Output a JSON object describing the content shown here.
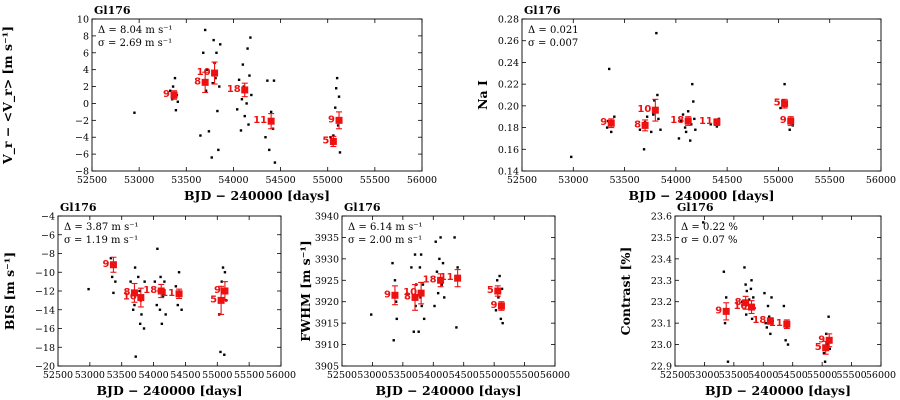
{
  "figure": {
    "object": "Gl176"
  },
  "colors": {
    "binned": "#ee1111",
    "raw": "#000000",
    "axes": "#000000"
  },
  "chart_data": [
    {
      "type": "scatter",
      "title": "Gl176",
      "xlabel": "BJD − 240000 [days]",
      "ylabel": "V_r − <V_r> [m s⁻¹]",
      "xlim": [
        52500,
        56000
      ],
      "ylim": [
        -8,
        10
      ],
      "xticks": [
        52500,
        53000,
        53500,
        54000,
        54500,
        55000,
        55500,
        56000
      ],
      "yticks": [
        -8,
        -6,
        -4,
        -2,
        0,
        2,
        4,
        6,
        8,
        10
      ],
      "tick_decimals": 0,
      "annotation": [
        "Δ = 8.04 m s⁻¹",
        "σ = 2.69 m s⁻¹"
      ],
      "binned": [
        {
          "x": 53370,
          "y": 1.0,
          "err": 0.5,
          "n": "9"
        },
        {
          "x": 53700,
          "y": 2.5,
          "err": 1.2,
          "n": "8"
        },
        {
          "x": 53800,
          "y": 3.6,
          "err": 1.3,
          "n": "10"
        },
        {
          "x": 54120,
          "y": 1.6,
          "err": 0.8,
          "n": "18"
        },
        {
          "x": 54400,
          "y": -2.1,
          "err": 0.9,
          "n": "11"
        },
        {
          "x": 55060,
          "y": -4.5,
          "err": 0.6,
          "n": "5"
        },
        {
          "x": 55120,
          "y": -2.0,
          "err": 1.0,
          "n": "9"
        }
      ],
      "raw": [
        [
          52950,
          -1.1
        ],
        [
          53330,
          1.5
        ],
        [
          53350,
          0.5
        ],
        [
          53360,
          2.0
        ],
        [
          53380,
          3.0
        ],
        [
          53390,
          -0.8
        ],
        [
          53400,
          1.0
        ],
        [
          53410,
          0.2
        ],
        [
          53650,
          -3.8
        ],
        [
          53680,
          6.0
        ],
        [
          53700,
          8.7
        ],
        [
          53710,
          1.5
        ],
        [
          53720,
          4.0
        ],
        [
          53740,
          -3.3
        ],
        [
          53770,
          -6.4
        ],
        [
          53780,
          2.4
        ],
        [
          53790,
          7.5
        ],
        [
          53800,
          4.8
        ],
        [
          53810,
          3.0
        ],
        [
          53820,
          6.0
        ],
        [
          53830,
          -0.9
        ],
        [
          53840,
          -5.5
        ],
        [
          53850,
          2.0
        ],
        [
          53860,
          7.0
        ],
        [
          54040,
          -0.7
        ],
        [
          54060,
          2.8
        ],
        [
          54080,
          -3.2
        ],
        [
          54090,
          0.5
        ],
        [
          54100,
          4.6
        ],
        [
          54110,
          2.0
        ],
        [
          54120,
          -1.5
        ],
        [
          54140,
          0.0
        ],
        [
          54150,
          6.5
        ],
        [
          54160,
          -2.5
        ],
        [
          54170,
          3.3
        ],
        [
          54180,
          7.8
        ],
        [
          54190,
          1.0
        ],
        [
          54340,
          -4.0
        ],
        [
          54360,
          2.7
        ],
        [
          54380,
          -5.5
        ],
        [
          54400,
          -1.0
        ],
        [
          54420,
          -3.0
        ],
        [
          54430,
          2.7
        ],
        [
          54440,
          -7.0
        ],
        [
          55030,
          -4.0
        ],
        [
          55050,
          -4.8
        ],
        [
          55060,
          -3.8
        ],
        [
          55080,
          -0.5
        ],
        [
          55090,
          1.8
        ],
        [
          55100,
          3.0
        ],
        [
          55110,
          -2.6
        ],
        [
          55120,
          0.8
        ],
        [
          55130,
          -5.8
        ]
      ]
    },
    {
      "type": "scatter",
      "title": "Gl176",
      "xlabel": "BJD − 240000 [days]",
      "ylabel": "Na I",
      "xlim": [
        52500,
        56000
      ],
      "ylim": [
        0.14,
        0.28
      ],
      "xticks": [
        52500,
        53000,
        53500,
        54000,
        54500,
        55000,
        55500,
        56000
      ],
      "yticks": [
        0.14,
        0.16,
        0.18,
        0.2,
        0.22,
        0.24,
        0.26,
        0.28
      ],
      "tick_decimals": 2,
      "annotation": [
        "Δ = 0.021",
        "σ = 0.007"
      ],
      "binned": [
        {
          "x": 53370,
          "y": 0.184,
          "err": 0.004,
          "n": "9"
        },
        {
          "x": 53700,
          "y": 0.182,
          "err": 0.005,
          "n": "8"
        },
        {
          "x": 53800,
          "y": 0.196,
          "err": 0.01,
          "n": "10"
        },
        {
          "x": 54120,
          "y": 0.186,
          "err": 0.004,
          "n": "18"
        },
        {
          "x": 54400,
          "y": 0.185,
          "err": 0.003,
          "n": "11"
        },
        {
          "x": 55060,
          "y": 0.202,
          "err": 0.004,
          "n": "5"
        },
        {
          "x": 55120,
          "y": 0.186,
          "err": 0.004,
          "n": "9"
        }
      ],
      "raw": [
        [
          52980,
          0.153
        ],
        [
          53330,
          0.18
        ],
        [
          53340,
          0.186
        ],
        [
          53350,
          0.234
        ],
        [
          53370,
          0.176
        ],
        [
          53390,
          0.183
        ],
        [
          53400,
          0.19
        ],
        [
          53650,
          0.178
        ],
        [
          53690,
          0.16
        ],
        [
          53700,
          0.185
        ],
        [
          53720,
          0.19
        ],
        [
          53760,
          0.176
        ],
        [
          53780,
          0.192
        ],
        [
          53790,
          0.205
        ],
        [
          53800,
          0.198
        ],
        [
          53810,
          0.267
        ],
        [
          53820,
          0.21
        ],
        [
          53830,
          0.188
        ],
        [
          53850,
          0.178
        ],
        [
          54030,
          0.17
        ],
        [
          54050,
          0.186
        ],
        [
          54070,
          0.192
        ],
        [
          54090,
          0.18
        ],
        [
          54100,
          0.176
        ],
        [
          54120,
          0.195
        ],
        [
          54140,
          0.168
        ],
        [
          54150,
          0.183
        ],
        [
          54160,
          0.22
        ],
        [
          54170,
          0.204
        ],
        [
          54180,
          0.188
        ],
        [
          54190,
          0.178
        ],
        [
          54340,
          0.183
        ],
        [
          54380,
          0.186
        ],
        [
          54400,
          0.181
        ],
        [
          54420,
          0.188
        ],
        [
          55020,
          0.198
        ],
        [
          55040,
          0.205
        ],
        [
          55060,
          0.22
        ],
        [
          55080,
          0.2
        ],
        [
          55100,
          0.185
        ],
        [
          55110,
          0.178
        ],
        [
          55130,
          0.188
        ],
        [
          55140,
          0.182
        ]
      ]
    },
    {
      "type": "scatter",
      "title": "Gl176",
      "xlabel": "BJD − 240000 [days]",
      "ylabel": "BIS [m s⁻¹]",
      "xlim": [
        52500,
        56000
      ],
      "ylim": [
        -20,
        -4
      ],
      "xticks": [
        52500,
        53000,
        53500,
        54000,
        54500,
        55000,
        55500,
        56000
      ],
      "yticks": [
        -20,
        -18,
        -16,
        -14,
        -12,
        -10,
        -8,
        -6,
        -4
      ],
      "tick_decimals": 0,
      "annotation": [
        "Δ = 3.87 m s⁻¹",
        "σ = 1.19 m s⁻¹"
      ],
      "binned": [
        {
          "x": 53370,
          "y": -9.2,
          "err": 0.8,
          "n": "9"
        },
        {
          "x": 53700,
          "y": -12.2,
          "err": 1.0,
          "n": "8"
        },
        {
          "x": 53800,
          "y": -12.7,
          "err": 1.0,
          "n": "10"
        },
        {
          "x": 54120,
          "y": -12.0,
          "err": 0.7,
          "n": "18"
        },
        {
          "x": 54400,
          "y": -12.3,
          "err": 0.5,
          "n": "11"
        },
        {
          "x": 55060,
          "y": -13.0,
          "err": 1.5,
          "n": "5"
        },
        {
          "x": 55120,
          "y": -12.0,
          "err": 1.0,
          "n": "9"
        }
      ],
      "raw": [
        [
          52980,
          -11.8
        ],
        [
          53330,
          -8.5
        ],
        [
          53350,
          -10.5
        ],
        [
          53370,
          -12.2
        ],
        [
          53390,
          -9.0
        ],
        [
          53400,
          -11.0
        ],
        [
          53640,
          -11.0
        ],
        [
          53680,
          -14.0
        ],
        [
          53700,
          -13.5
        ],
        [
          53710,
          -9.5
        ],
        [
          53720,
          -19.0
        ],
        [
          53760,
          -10.5
        ],
        [
          53780,
          -12.0
        ],
        [
          53790,
          -15.5
        ],
        [
          53800,
          -13.0
        ],
        [
          53810,
          -14.5
        ],
        [
          53830,
          -12.5
        ],
        [
          53850,
          -16.0
        ],
        [
          53860,
          -11.0
        ],
        [
          54020,
          -11.0
        ],
        [
          54050,
          -13.5
        ],
        [
          54060,
          -7.5
        ],
        [
          54080,
          -12.0
        ],
        [
          54100,
          -14.0
        ],
        [
          54110,
          -10.5
        ],
        [
          54130,
          -15.5
        ],
        [
          54150,
          -12.5
        ],
        [
          54170,
          -11.0
        ],
        [
          54190,
          -14.5
        ],
        [
          54350,
          -11.5
        ],
        [
          54380,
          -13.5
        ],
        [
          54400,
          -10.0
        ],
        [
          54420,
          -12.5
        ],
        [
          54440,
          -14.0
        ],
        [
          55030,
          -14.5
        ],
        [
          55050,
          -18.5
        ],
        [
          55070,
          -11.0
        ],
        [
          55090,
          -9.5
        ],
        [
          55110,
          -18.8
        ],
        [
          55120,
          -10.0
        ],
        [
          55140,
          -13.0
        ]
      ]
    },
    {
      "type": "scatter",
      "title": "Gl176",
      "xlabel": "BJD − 240000 [days]",
      "ylabel": "FWHM [m s⁻¹]",
      "xlim": [
        52500,
        56000
      ],
      "ylim": [
        3905,
        3940
      ],
      "xticks": [
        52500,
        53000,
        53500,
        54000,
        54500,
        55000,
        55500,
        56000
      ],
      "yticks": [
        3905,
        3910,
        3915,
        3920,
        3925,
        3930,
        3935,
        3940
      ],
      "tick_decimals": 0,
      "annotation": [
        "Δ = 6.14 m s⁻¹",
        "σ = 2.00 m s⁻¹"
      ],
      "binned": [
        {
          "x": 53370,
          "y": 3921.5,
          "err": 2.2,
          "n": "9"
        },
        {
          "x": 53700,
          "y": 3921.0,
          "err": 3.0,
          "n": "8"
        },
        {
          "x": 53800,
          "y": 3922.0,
          "err": 2.5,
          "n": "10"
        },
        {
          "x": 54120,
          "y": 3925.0,
          "err": 1.5,
          "n": "18"
        },
        {
          "x": 54400,
          "y": 3925.5,
          "err": 2.0,
          "n": "11"
        },
        {
          "x": 55060,
          "y": 3922.5,
          "err": 1.2,
          "n": "5"
        },
        {
          "x": 55120,
          "y": 3919.0,
          "err": 1.0,
          "n": "9"
        }
      ],
      "raw": [
        [
          52980,
          3917
        ],
        [
          53330,
          3929
        ],
        [
          53350,
          3911
        ],
        [
          53370,
          3925
        ],
        [
          53390,
          3920
        ],
        [
          53400,
          3916
        ],
        [
          53640,
          3928
        ],
        [
          53680,
          3913
        ],
        [
          53700,
          3931
        ],
        [
          53710,
          3919
        ],
        [
          53720,
          3924
        ],
        [
          53760,
          3913
        ],
        [
          53780,
          3928
        ],
        [
          53790,
          3921
        ],
        [
          53800,
          3931
        ],
        [
          53810,
          3919
        ],
        [
          53830,
          3924
        ],
        [
          53850,
          3916
        ],
        [
          54020,
          3919
        ],
        [
          54040,
          3934
        ],
        [
          54060,
          3927
        ],
        [
          54080,
          3922
        ],
        [
          54100,
          3930
        ],
        [
          54120,
          3935
        ],
        [
          54140,
          3924
        ],
        [
          54160,
          3929
        ],
        [
          54180,
          3921
        ],
        [
          54350,
          3935
        ],
        [
          54380,
          3914
        ],
        [
          54400,
          3928
        ],
        [
          54420,
          3925
        ],
        [
          55030,
          3918
        ],
        [
          55050,
          3925
        ],
        [
          55070,
          3921
        ],
        [
          55090,
          3926
        ],
        [
          55110,
          3916
        ],
        [
          55130,
          3923
        ],
        [
          55140,
          3915
        ]
      ]
    },
    {
      "type": "scatter",
      "title": "Gl176",
      "xlabel": "BJD − 240000 [days]",
      "ylabel": "Contrast [%]",
      "xlim": [
        52500,
        56000
      ],
      "ylim": [
        22.9,
        23.6
      ],
      "xticks": [
        52500,
        53000,
        53500,
        54000,
        54500,
        55000,
        55500,
        56000
      ],
      "yticks": [
        22.9,
        23.0,
        23.1,
        23.2,
        23.3,
        23.4,
        23.5,
        23.6
      ],
      "tick_decimals": 1,
      "annotation": [
        "Δ = 0.22 %",
        "σ = 0.07 %"
      ],
      "binned": [
        {
          "x": 53370,
          "y": 23.155,
          "err": 0.04,
          "n": "9"
        },
        {
          "x": 53700,
          "y": 23.195,
          "err": 0.03,
          "n": "8"
        },
        {
          "x": 53800,
          "y": 23.175,
          "err": 0.03,
          "n": "10"
        },
        {
          "x": 54120,
          "y": 23.11,
          "err": 0.015,
          "n": "18"
        },
        {
          "x": 54400,
          "y": 23.095,
          "err": 0.02,
          "n": "11"
        },
        {
          "x": 55060,
          "y": 22.985,
          "err": 0.03,
          "n": "5"
        },
        {
          "x": 55120,
          "y": 23.02,
          "err": 0.03,
          "n": "9"
        }
      ],
      "raw": [
        [
          52980,
          23.57
        ],
        [
          53330,
          23.34
        ],
        [
          53350,
          23.1
        ],
        [
          53370,
          23.22
        ],
        [
          53390,
          23.15
        ],
        [
          53400,
          22.92
        ],
        [
          53640,
          23.2
        ],
        [
          53680,
          23.36
        ],
        [
          53700,
          23.28
        ],
        [
          53710,
          23.14
        ],
        [
          53720,
          23.25
        ],
        [
          53760,
          23.21
        ],
        [
          53780,
          23.18
        ],
        [
          53790,
          23.26
        ],
        [
          53800,
          23.3
        ],
        [
          53810,
          23.12
        ],
        [
          53830,
          23.22
        ],
        [
          53850,
          23.17
        ],
        [
          54020,
          23.24
        ],
        [
          54040,
          23.1
        ],
        [
          54060,
          23.08
        ],
        [
          54080,
          23.18
        ],
        [
          54100,
          23.13
        ],
        [
          54120,
          23.05
        ],
        [
          54140,
          23.22
        ],
        [
          54160,
          23.11
        ],
        [
          54350,
          23.18
        ],
        [
          54380,
          23.02
        ],
        [
          54400,
          23.08
        ],
        [
          54420,
          23.0
        ],
        [
          55030,
          22.96
        ],
        [
          55050,
          22.92
        ],
        [
          55070,
          23.05
        ],
        [
          55090,
          23.0
        ],
        [
          55110,
          23.13
        ],
        [
          55130,
          22.98
        ]
      ]
    }
  ]
}
